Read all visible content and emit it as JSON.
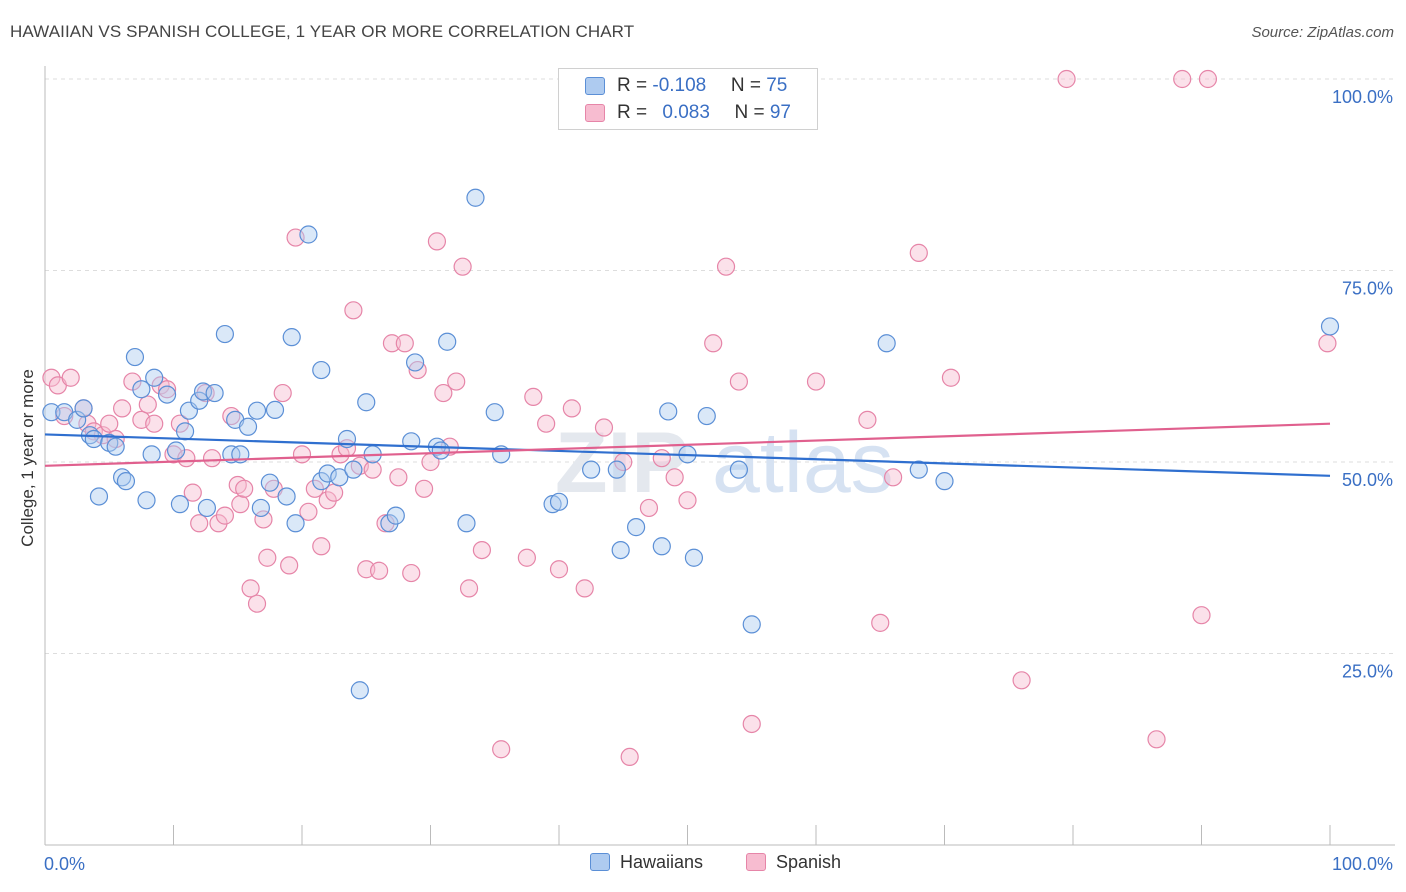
{
  "header": {
    "title": "HAWAIIAN VS SPANISH COLLEGE, 1 YEAR OR MORE CORRELATION CHART",
    "source": "Source: ZipAtlas.com"
  },
  "watermark": {
    "part1": "ZIP",
    "part2": "atlas"
  },
  "legend": {
    "rows": [
      {
        "r_label": "R = ",
        "r_value": "-0.108",
        "n_label": "N = ",
        "n_value": "75"
      },
      {
        "r_label": "R = ",
        "r_value": "0.083",
        "n_label": "N = ",
        "n_value": "97"
      }
    ]
  },
  "colors": {
    "hawaiians_fill": "#aecbf0",
    "hawaiians_stroke": "#5b8fd6",
    "hawaiians_line": "#2f6fcf",
    "spanish_fill": "#f7bcd0",
    "spanish_stroke": "#e685a8",
    "spanish_line": "#e0608e",
    "tick_label": "#3a6fc4",
    "grid": "#dddddd"
  },
  "chart_data": {
    "type": "scatter",
    "title": "HAWAIIAN VS SPANISH COLLEGE, 1 YEAR OR MORE CORRELATION CHART",
    "xlabel": "",
    "ylabel": "College, 1 year or more",
    "xlim": [
      0,
      100
    ],
    "ylim": [
      0,
      100
    ],
    "x_tick_labels": [
      {
        "value": 0,
        "label": "0.0%"
      },
      {
        "value": 100,
        "label": "100.0%"
      }
    ],
    "y_tick_labels": [
      {
        "value": 25,
        "label": "25.0%"
      },
      {
        "value": 50,
        "label": "50.0%"
      },
      {
        "value": 75,
        "label": "75.0%"
      },
      {
        "value": 100,
        "label": "100.0%"
      }
    ],
    "y_grid": [
      25,
      50,
      75,
      100
    ],
    "legend_position": "bottom",
    "series": [
      {
        "name": "Hawaiians",
        "r": -0.108,
        "n": 75,
        "trend": {
          "x": [
            0,
            100
          ],
          "y": [
            53.6,
            48.2
          ]
        },
        "points": [
          [
            0.5,
            56.5
          ],
          [
            1.5,
            56.5
          ],
          [
            2.5,
            55.5
          ],
          [
            3.0,
            57.0
          ],
          [
            3.5,
            53.5
          ],
          [
            3.8,
            53.0
          ],
          [
            4.2,
            45.5
          ],
          [
            5.0,
            52.5
          ],
          [
            5.5,
            52.0
          ],
          [
            6.0,
            48.0
          ],
          [
            6.3,
            47.5
          ],
          [
            7.0,
            63.7
          ],
          [
            7.5,
            59.5
          ],
          [
            7.9,
            45.0
          ],
          [
            8.5,
            61.0
          ],
          [
            8.3,
            51.0
          ],
          [
            9.5,
            58.8
          ],
          [
            10.2,
            51.5
          ],
          [
            10.5,
            44.5
          ],
          [
            10.9,
            54.0
          ],
          [
            11.2,
            56.7
          ],
          [
            12.0,
            58.0
          ],
          [
            12.3,
            59.2
          ],
          [
            12.6,
            44.0
          ],
          [
            13.2,
            59.0
          ],
          [
            14.0,
            66.7
          ],
          [
            14.5,
            51.0
          ],
          [
            14.8,
            55.5
          ],
          [
            15.2,
            51.0
          ],
          [
            15.8,
            54.6
          ],
          [
            16.5,
            56.7
          ],
          [
            16.8,
            44.0
          ],
          [
            17.5,
            47.3
          ],
          [
            17.9,
            56.8
          ],
          [
            18.8,
            45.5
          ],
          [
            19.2,
            66.3
          ],
          [
            19.5,
            42.0
          ],
          [
            20.5,
            79.7
          ],
          [
            21.5,
            62.0
          ],
          [
            21.5,
            47.5
          ],
          [
            22.0,
            48.5
          ],
          [
            22.9,
            48.0
          ],
          [
            23.5,
            53.0
          ],
          [
            24.0,
            49.0
          ],
          [
            24.5,
            20.2
          ],
          [
            25.0,
            57.8
          ],
          [
            25.5,
            51.0
          ],
          [
            26.8,
            42.0
          ],
          [
            27.3,
            43.0
          ],
          [
            28.5,
            52.7
          ],
          [
            28.8,
            63.0
          ],
          [
            30.5,
            52.0
          ],
          [
            30.8,
            51.5
          ],
          [
            31.3,
            65.7
          ],
          [
            32.8,
            42.0
          ],
          [
            33.5,
            84.5
          ],
          [
            35.0,
            56.5
          ],
          [
            35.5,
            51.0
          ],
          [
            39.5,
            44.5
          ],
          [
            40.0,
            44.8
          ],
          [
            42.5,
            49.0
          ],
          [
            44.5,
            49.0
          ],
          [
            44.8,
            38.5
          ],
          [
            46.0,
            41.5
          ],
          [
            48.0,
            39.0
          ],
          [
            48.5,
            56.6
          ],
          [
            50.0,
            51.0
          ],
          [
            50.5,
            37.5
          ],
          [
            51.5,
            56.0
          ],
          [
            54.0,
            49.0
          ],
          [
            55.0,
            28.8
          ],
          [
            65.5,
            65.5
          ],
          [
            68.0,
            49.0
          ],
          [
            70.0,
            47.5
          ],
          [
            100.0,
            67.7
          ]
        ]
      },
      {
        "name": "Spanish",
        "r": 0.083,
        "n": 97,
        "trend": {
          "x": [
            0,
            100
          ],
          "y": [
            49.5,
            55.0
          ]
        },
        "points": [
          [
            0.5,
            61.0
          ],
          [
            1.0,
            60.0
          ],
          [
            1.5,
            56.0
          ],
          [
            2.0,
            61.0
          ],
          [
            3.0,
            57.0
          ],
          [
            3.3,
            55.0
          ],
          [
            3.8,
            54.0
          ],
          [
            4.5,
            53.5
          ],
          [
            5.0,
            55.0
          ],
          [
            5.5,
            53.0
          ],
          [
            6.0,
            57.0
          ],
          [
            6.8,
            60.5
          ],
          [
            7.5,
            55.5
          ],
          [
            8.0,
            57.5
          ],
          [
            8.5,
            55.0
          ],
          [
            9.0,
            60.0
          ],
          [
            9.5,
            59.5
          ],
          [
            10.0,
            51.0
          ],
          [
            10.5,
            55.0
          ],
          [
            11.0,
            50.5
          ],
          [
            11.5,
            46.0
          ],
          [
            12.0,
            42.0
          ],
          [
            12.5,
            59.0
          ],
          [
            13.0,
            50.5
          ],
          [
            13.5,
            42.0
          ],
          [
            14.0,
            43.0
          ],
          [
            14.5,
            56.0
          ],
          [
            15.0,
            47.0
          ],
          [
            15.2,
            44.5
          ],
          [
            15.5,
            46.5
          ],
          [
            16.0,
            33.5
          ],
          [
            16.5,
            31.5
          ],
          [
            17.0,
            42.5
          ],
          [
            17.3,
            37.5
          ],
          [
            17.8,
            46.5
          ],
          [
            18.5,
            59.0
          ],
          [
            19.0,
            36.5
          ],
          [
            19.5,
            79.3
          ],
          [
            20.0,
            51.0
          ],
          [
            20.5,
            43.5
          ],
          [
            21.0,
            46.5
          ],
          [
            21.5,
            39.0
          ],
          [
            22.0,
            45.0
          ],
          [
            22.5,
            46.0
          ],
          [
            23.0,
            51.0
          ],
          [
            23.5,
            51.8
          ],
          [
            24.0,
            69.8
          ],
          [
            24.5,
            49.5
          ],
          [
            25.0,
            36.0
          ],
          [
            25.5,
            49.0
          ],
          [
            26.0,
            35.8
          ],
          [
            26.5,
            42.0
          ],
          [
            27.0,
            65.5
          ],
          [
            27.5,
            48.0
          ],
          [
            28.0,
            65.5
          ],
          [
            28.5,
            35.5
          ],
          [
            29.0,
            62.0
          ],
          [
            29.5,
            46.5
          ],
          [
            30.0,
            50.0
          ],
          [
            30.5,
            78.8
          ],
          [
            31.0,
            59.0
          ],
          [
            31.5,
            52.0
          ],
          [
            32.0,
            60.5
          ],
          [
            32.5,
            75.5
          ],
          [
            33.0,
            33.5
          ],
          [
            34.0,
            38.5
          ],
          [
            35.5,
            12.5
          ],
          [
            37.5,
            37.5
          ],
          [
            38.0,
            58.5
          ],
          [
            39.0,
            55.0
          ],
          [
            40.0,
            36.0
          ],
          [
            41.0,
            57.0
          ],
          [
            42.0,
            33.5
          ],
          [
            43.5,
            54.5
          ],
          [
            45.0,
            50.0
          ],
          [
            45.5,
            11.5
          ],
          [
            47.0,
            44.0
          ],
          [
            48.0,
            50.5
          ],
          [
            49.0,
            48.0
          ],
          [
            50.0,
            45.0
          ],
          [
            52.0,
            65.5
          ],
          [
            53.0,
            75.5
          ],
          [
            54.0,
            60.5
          ],
          [
            55.0,
            15.8
          ],
          [
            60.0,
            60.5
          ],
          [
            64.0,
            55.5
          ],
          [
            65.0,
            29.0
          ],
          [
            66.0,
            48.0
          ],
          [
            68.0,
            77.3
          ],
          [
            70.5,
            61.0
          ],
          [
            76.0,
            21.5
          ],
          [
            79.5,
            100.0
          ],
          [
            88.5,
            100.0
          ],
          [
            90.5,
            100.0
          ],
          [
            86.5,
            13.8
          ],
          [
            90.0,
            30.0
          ],
          [
            99.8,
            65.5
          ]
        ]
      }
    ]
  }
}
